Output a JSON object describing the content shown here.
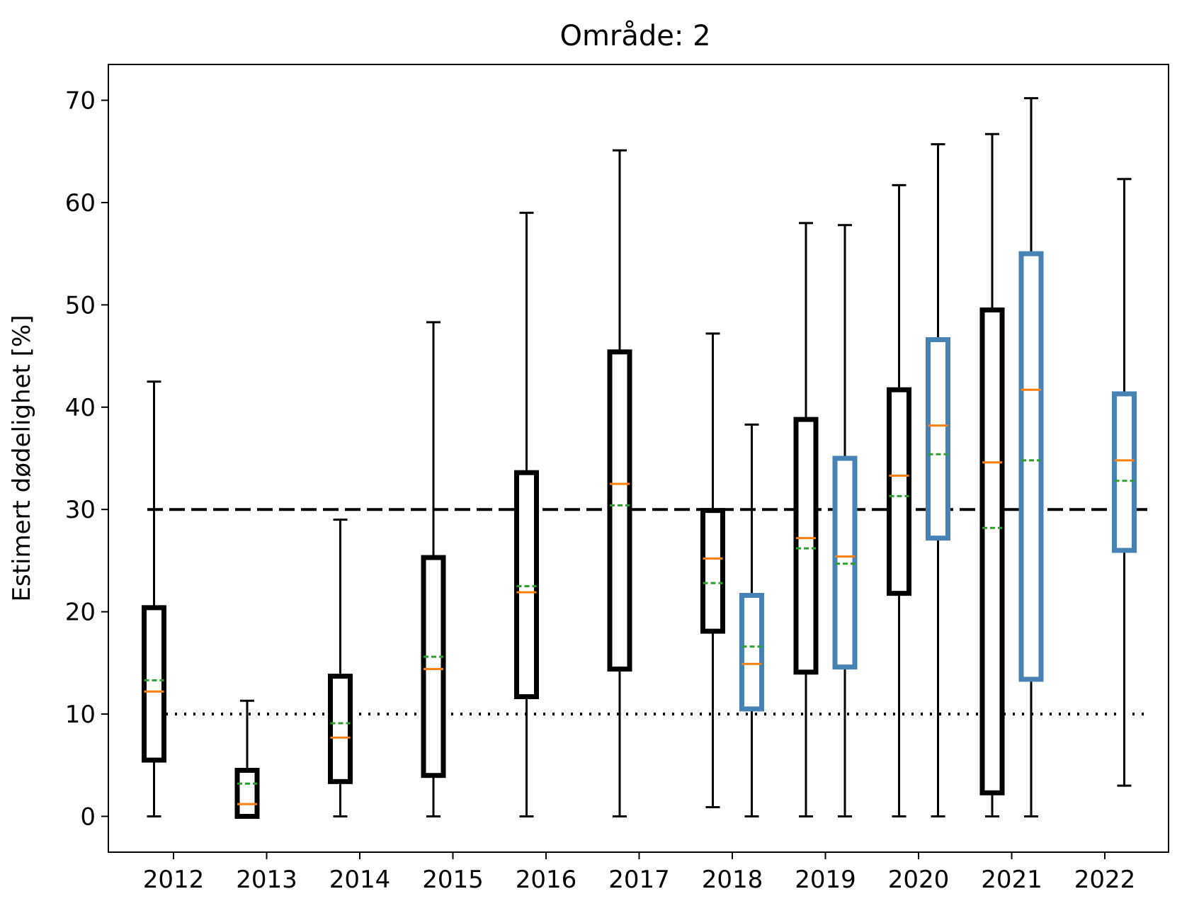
{
  "chart_data": {
    "type": "box",
    "title": "Område: 2",
    "xlabel": "",
    "ylabel": "Estimert dødelighet [%]",
    "categories": [
      "2012",
      "2013",
      "2014",
      "2015",
      "2016",
      "2017",
      "2018",
      "2019",
      "2020",
      "2021",
      "2022"
    ],
    "ylim": [
      -3.5,
      73.5
    ],
    "yticks": [
      0,
      10,
      20,
      30,
      40,
      50,
      60,
      70
    ],
    "reference_lines": [
      {
        "y": 30,
        "style": "dashed",
        "color": "#000000"
      },
      {
        "y": 10,
        "style": "dotted",
        "color": "#000000"
      }
    ],
    "series_colors": {
      "black": "#000000",
      "blue": "#4682b4",
      "median": "#ff7f0e",
      "mean": "#2ca02c"
    },
    "boxes": [
      {
        "category": "2012",
        "series": "black",
        "whisker_low": 0,
        "q1": 5.5,
        "median": 12.2,
        "mean": 13.3,
        "q3": 20.4,
        "whisker_high": 42.5
      },
      {
        "category": "2013",
        "series": "black",
        "whisker_low": 0,
        "q1": 0,
        "median": 1.2,
        "mean": 3.2,
        "q3": 4.5,
        "whisker_high": 11.3
      },
      {
        "category": "2014",
        "series": "black",
        "whisker_low": 0,
        "q1": 3.4,
        "median": 7.7,
        "mean": 9.1,
        "q3": 13.7,
        "whisker_high": 29.0
      },
      {
        "category": "2015",
        "series": "black",
        "whisker_low": 0,
        "q1": 4.0,
        "median": 14.4,
        "mean": 15.6,
        "q3": 25.3,
        "whisker_high": 48.3
      },
      {
        "category": "2016",
        "series": "black",
        "whisker_low": 0,
        "q1": 11.7,
        "median": 21.9,
        "mean": 22.5,
        "q3": 33.6,
        "whisker_high": 59.0
      },
      {
        "category": "2017",
        "series": "black",
        "whisker_low": 0,
        "q1": 14.4,
        "median": 32.5,
        "mean": 30.4,
        "q3": 45.4,
        "whisker_high": 65.1
      },
      {
        "category": "2018",
        "series": "black",
        "whisker_low": 0.9,
        "q1": 18.1,
        "median": 25.2,
        "mean": 22.8,
        "q3": 29.9,
        "whisker_high": 47.2
      },
      {
        "category": "2018",
        "series": "blue",
        "whisker_low": 0,
        "q1": 10.5,
        "median": 14.9,
        "mean": 16.6,
        "q3": 21.6,
        "whisker_high": 38.3
      },
      {
        "category": "2019",
        "series": "black",
        "whisker_low": 0,
        "q1": 14.1,
        "median": 27.2,
        "mean": 26.2,
        "q3": 38.8,
        "whisker_high": 58.0
      },
      {
        "category": "2019",
        "series": "blue",
        "whisker_low": 0,
        "q1": 14.6,
        "median": 25.4,
        "mean": 24.7,
        "q3": 35.0,
        "whisker_high": 57.8
      },
      {
        "category": "2020",
        "series": "black",
        "whisker_low": 0,
        "q1": 21.8,
        "median": 33.3,
        "mean": 31.3,
        "q3": 41.7,
        "whisker_high": 61.7
      },
      {
        "category": "2020",
        "series": "blue",
        "whisker_low": 0,
        "q1": 27.2,
        "median": 38.2,
        "mean": 35.4,
        "q3": 46.6,
        "whisker_high": 65.7
      },
      {
        "category": "2021",
        "series": "black",
        "whisker_low": 0,
        "q1": 2.3,
        "median": 34.6,
        "mean": 28.2,
        "q3": 49.5,
        "whisker_high": 66.7
      },
      {
        "category": "2021",
        "series": "blue",
        "whisker_low": 0,
        "q1": 13.4,
        "median": 41.7,
        "mean": 34.8,
        "q3": 55.0,
        "whisker_high": 70.2
      },
      {
        "category": "2022",
        "series": "blue",
        "whisker_low": 3.0,
        "q1": 26.0,
        "median": 34.8,
        "mean": 32.8,
        "q3": 41.3,
        "whisker_high": 62.3
      }
    ]
  }
}
